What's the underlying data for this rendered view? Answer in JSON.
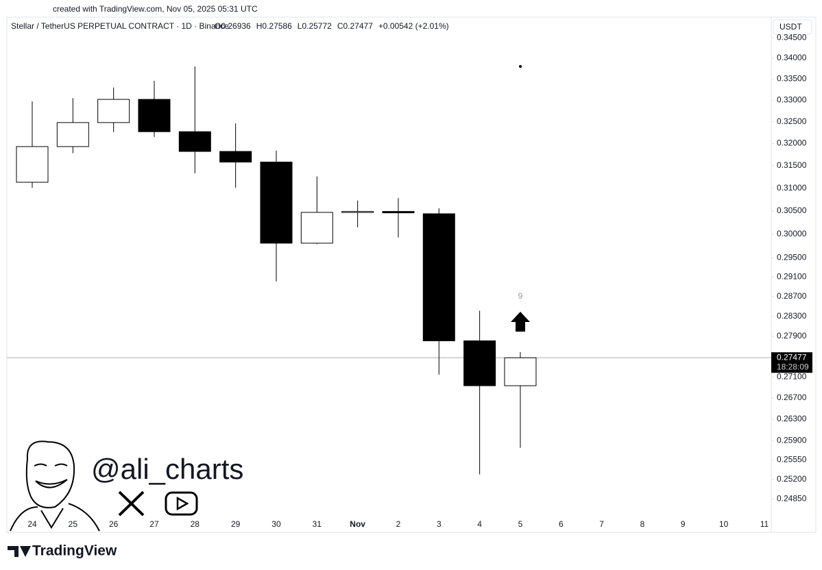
{
  "credit": "created with TradingView.com, Nov 05, 2025 05:31 UTC",
  "chart_data": {
    "type": "candlestick",
    "title": "Stellar / TetherUS PERPETUAL CONTRACT · 1D · Binance",
    "ohlc_text": [
      "O0.26936",
      "H0.27586",
      "L0.25772",
      "C0.27477",
      "+0.00542 (+2.01%)"
    ],
    "currency": "USDT",
    "categories": [
      "24",
      "25",
      "26",
      "27",
      "28",
      "29",
      "30",
      "31",
      "Nov",
      "2",
      "3",
      "4",
      "5",
      "6",
      "7",
      "8",
      "9",
      "10",
      "11"
    ],
    "open": [
      0.3113,
      0.3193,
      0.3248,
      0.3302,
      0.3227,
      0.3182,
      0.3158,
      0.2981,
      0.3047,
      0.3049,
      0.3044,
      0.2781,
      0.26936,
      null,
      null,
      null,
      null,
      null,
      null
    ],
    "high": [
      0.3297,
      0.3305,
      0.333,
      0.3346,
      0.338,
      0.3246,
      0.3184,
      0.3126,
      0.3073,
      0.3078,
      0.3056,
      0.2841,
      0.27586,
      null,
      null,
      null,
      null,
      null,
      null
    ],
    "low": [
      0.3101,
      0.3178,
      0.3226,
      0.3215,
      0.3133,
      0.3101,
      0.2901,
      0.2979,
      0.3015,
      0.2993,
      0.2715,
      0.2529,
      0.25772,
      null,
      null,
      null,
      null,
      null,
      null
    ],
    "close": [
      0.3193,
      0.3248,
      0.3302,
      0.3227,
      0.3182,
      0.3158,
      0.2981,
      0.3047,
      0.3049,
      0.3046,
      0.2781,
      0.26936,
      0.27477,
      null,
      null,
      null,
      null,
      null,
      null
    ],
    "up_color": "#ffffff",
    "down_color": "#000000",
    "log_scale": true,
    "ylim": [
      0.2459,
      0.3467
    ],
    "yticks": [
      {
        "value": 0.345,
        "label": "0.34500"
      },
      {
        "value": 0.34,
        "label": "0.34000"
      },
      {
        "value": 0.335,
        "label": "0.33500"
      },
      {
        "value": 0.33,
        "label": "0.33000"
      },
      {
        "value": 0.325,
        "label": "0.32500"
      },
      {
        "value": 0.32,
        "label": "0.32000"
      },
      {
        "value": 0.315,
        "label": "0.31500"
      },
      {
        "value": 0.31,
        "label": "0.31000"
      },
      {
        "value": 0.305,
        "label": "0.30500"
      },
      {
        "value": 0.3,
        "label": "0.30000"
      },
      {
        "value": 0.295,
        "label": "0.29500"
      },
      {
        "value": 0.291,
        "label": "0.29100"
      },
      {
        "value": 0.287,
        "label": "0.28700"
      },
      {
        "value": 0.283,
        "label": "0.28300"
      },
      {
        "value": 0.279,
        "label": "0.27900"
      },
      {
        "value": 0.271,
        "label": "0.27100"
      },
      {
        "value": 0.267,
        "label": "0.26700"
      },
      {
        "value": 0.263,
        "label": "0.26300"
      },
      {
        "value": 0.259,
        "label": "0.25900"
      },
      {
        "value": 0.2555,
        "label": "0.25550"
      },
      {
        "value": 0.252,
        "label": "0.25200"
      },
      {
        "value": 0.2485,
        "label": "0.24850"
      }
    ],
    "last_price": {
      "value": 0.27477,
      "label": "0.27477"
    },
    "countdown": "18:28:09",
    "signal_label": "9",
    "handle": "@ali_charts",
    "brand": "TradingView"
  }
}
